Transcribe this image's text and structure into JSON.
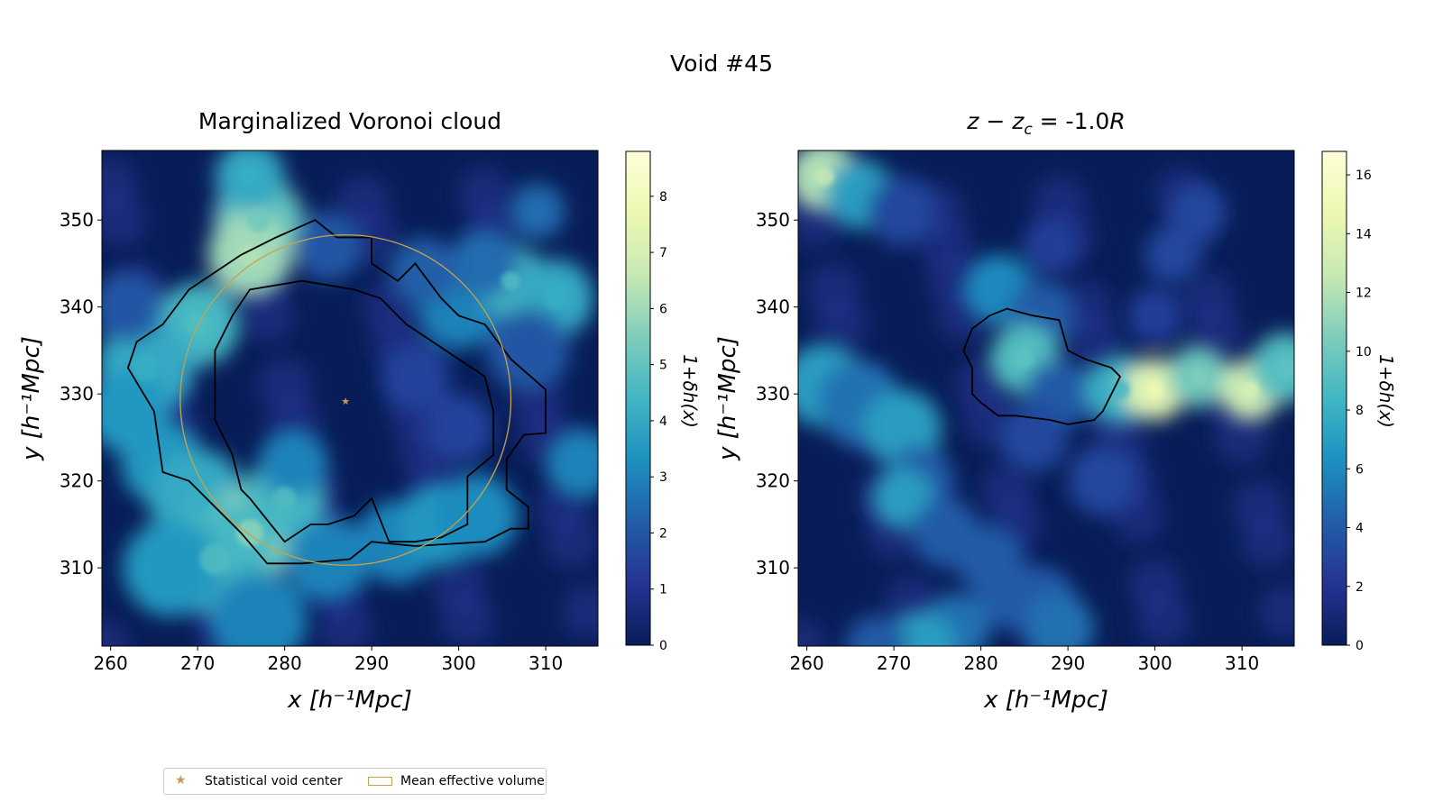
{
  "figure": {
    "suptitle": "Void #45",
    "legend": {
      "items": [
        "Statistical void center",
        "Mean effective volume"
      ],
      "placement": "lower-left"
    }
  },
  "colors": {
    "colormap": [
      "#081d58",
      "#253494",
      "#225ea8",
      "#1d91c0",
      "#41b6c4",
      "#7fcdbb",
      "#c7e9b4",
      "#edf8b1",
      "#ffffd9"
    ],
    "center_marker": "#c99a5a",
    "mean_volume_circle": "#c8a24a",
    "contour": "#000000"
  },
  "chart_data": [
    {
      "type": "heatmap",
      "title": "Marginalized Voronoi cloud",
      "xlabel": "x [h⁻¹Mpc]",
      "ylabel": "y [h⁻¹Mpc]",
      "xlim": [
        259,
        316
      ],
      "ylim": [
        301,
        358
      ],
      "xticks": [
        260,
        270,
        280,
        290,
        300,
        310
      ],
      "yticks": [
        310,
        320,
        330,
        340,
        350
      ],
      "colorbar": {
        "label": "1+δh(x)",
        "range": [
          0,
          8.8
        ],
        "ticks": [
          0,
          1,
          2,
          3,
          4,
          5,
          6,
          7,
          8
        ]
      },
      "void_center": {
        "x": 287,
        "y": 329.2
      },
      "mean_effective_volume": {
        "cx": 287,
        "cy": 329.3,
        "radius": 19
      },
      "contours": [
        [
          [
            283.5,
            350
          ],
          [
            286,
            348
          ],
          [
            290,
            348
          ],
          [
            290,
            345
          ],
          [
            293,
            343
          ],
          [
            295,
            345
          ],
          [
            298,
            341
          ],
          [
            300,
            339
          ],
          [
            303,
            338
          ],
          [
            306,
            334
          ],
          [
            310,
            330.5
          ],
          [
            310,
            325.5
          ],
          [
            307.5,
            325.3
          ],
          [
            305.5,
            322.5
          ],
          [
            305.5,
            319
          ],
          [
            308,
            317
          ],
          [
            308,
            314.5
          ],
          [
            306,
            314.5
          ],
          [
            303,
            313
          ],
          [
            295,
            312.5
          ],
          [
            290,
            313
          ],
          [
            287.5,
            311
          ],
          [
            282,
            310.5
          ],
          [
            278,
            310.5
          ],
          [
            275,
            314
          ],
          [
            269,
            320
          ],
          [
            266,
            321
          ],
          [
            265,
            328
          ],
          [
            262,
            333
          ],
          [
            263,
            336
          ],
          [
            266,
            338
          ],
          [
            269,
            342
          ],
          [
            272,
            344
          ],
          [
            275,
            346
          ],
          [
            279,
            348
          ],
          [
            283.5,
            350
          ]
        ],
        [
          [
            276,
            342
          ],
          [
            282,
            343
          ],
          [
            288,
            342
          ],
          [
            291,
            341
          ],
          [
            294,
            338
          ],
          [
            297,
            336
          ],
          [
            300,
            334
          ],
          [
            303,
            332
          ],
          [
            304,
            328
          ],
          [
            304,
            323
          ],
          [
            301,
            320.5
          ],
          [
            301,
            315
          ],
          [
            298,
            313.5
          ],
          [
            295,
            313
          ],
          [
            292,
            313
          ],
          [
            290,
            318
          ],
          [
            288,
            316
          ],
          [
            285,
            315
          ],
          [
            283,
            315
          ],
          [
            280,
            313
          ],
          [
            276,
            318
          ],
          [
            275,
            319
          ],
          [
            274,
            323
          ],
          [
            272,
            327
          ],
          [
            272,
            335
          ],
          [
            274,
            339
          ],
          [
            276,
            342
          ]
        ]
      ]
    },
    {
      "type": "heatmap",
      "title_main": "z − z",
      "title_sub": "c",
      "title_rest": " = -1.0",
      "title_italic": "R",
      "xlabel": "x [h⁻¹Mpc]",
      "ylabel": "y [h⁻¹Mpc]",
      "xlim": [
        259,
        316
      ],
      "ylim": [
        301,
        358
      ],
      "xticks": [
        260,
        270,
        280,
        290,
        300,
        310
      ],
      "yticks": [
        310,
        320,
        330,
        340,
        350
      ],
      "colorbar": {
        "label": "1+δh(x)",
        "range": [
          0,
          16.8
        ],
        "ticks": [
          0,
          2,
          4,
          6,
          8,
          10,
          12,
          14,
          16
        ]
      },
      "contours": [
        [
          [
            283,
            339.8
          ],
          [
            286,
            339
          ],
          [
            289,
            338.5
          ],
          [
            290,
            335
          ],
          [
            292,
            334
          ],
          [
            295,
            333
          ],
          [
            296,
            332
          ],
          [
            295,
            330
          ],
          [
            294,
            328
          ],
          [
            293,
            327
          ],
          [
            290,
            326.5
          ],
          [
            288,
            327
          ],
          [
            284,
            327.5
          ],
          [
            282,
            327.5
          ],
          [
            280,
            329
          ],
          [
            279,
            330
          ],
          [
            279,
            333
          ],
          [
            278,
            335
          ],
          [
            279,
            337.5
          ],
          [
            281,
            339
          ],
          [
            283,
            339.8
          ]
        ]
      ]
    }
  ]
}
